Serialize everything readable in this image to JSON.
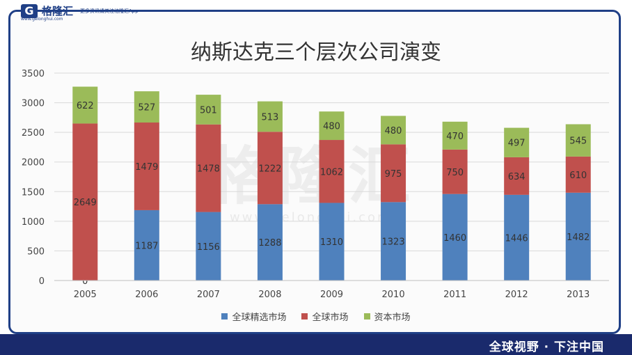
{
  "branding": {
    "logo_mark": "G",
    "logo_name": "格隆汇",
    "domain": "www.gelonghui.com",
    "tagline": "更多资讯请关注格隆汇App",
    "slogan": "全球视野 · 下注中国",
    "watermark": "格隆汇",
    "watermark_url": "www.gelonghui.com"
  },
  "chart_data": {
    "type": "bar",
    "stacked": true,
    "title": "纳斯达克三个层次公司演变",
    "categories": [
      "2005",
      "2006",
      "2007",
      "2008",
      "2009",
      "2010",
      "2011",
      "2012",
      "2013"
    ],
    "series": [
      {
        "name": "全球精选市场",
        "color": "#4f81bd",
        "values": [
          0,
          1187,
          1156,
          1288,
          1310,
          1323,
          1460,
          1446,
          1482
        ]
      },
      {
        "name": "全球市场",
        "color": "#c0504d",
        "values": [
          2649,
          1479,
          1478,
          1222,
          1062,
          975,
          750,
          634,
          610
        ]
      },
      {
        "name": "资本市场",
        "color": "#9bbb59",
        "values": [
          622,
          527,
          501,
          513,
          480,
          480,
          470,
          497,
          545
        ]
      }
    ],
    "ylim": [
      0,
      3500
    ],
    "yticks": [
      0,
      500,
      1000,
      1500,
      2000,
      2500,
      3000,
      3500
    ],
    "grid": true,
    "legend_position": "bottom"
  }
}
